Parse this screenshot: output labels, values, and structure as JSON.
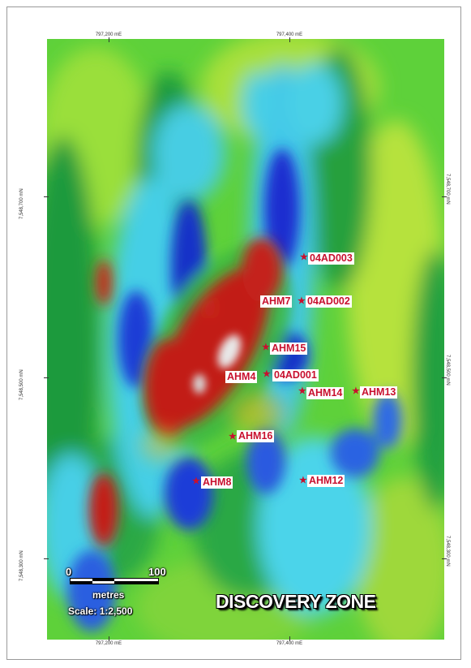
{
  "axes": {
    "top": [
      "797,200 mE",
      "797,400 mE"
    ],
    "bottom": [
      "797,200 mE",
      "797,400 mE"
    ],
    "left": [
      "7,548,700 mN",
      "7,548,500 mN",
      "7,548,300 mN"
    ],
    "right": [
      "7,548,700 mN",
      "7,548,500 mN",
      "7,548,300 mN"
    ]
  },
  "drillholes": [
    {
      "id": "04AD003"
    },
    {
      "id": "04AD002"
    },
    {
      "id": "AHM7"
    },
    {
      "id": "AHM15"
    },
    {
      "id": "AHM4"
    },
    {
      "id": "04AD001"
    },
    {
      "id": "AHM14"
    },
    {
      "id": "AHM13"
    },
    {
      "id": "AHM16"
    },
    {
      "id": "AHM8"
    },
    {
      "id": "AHM12"
    }
  ],
  "scalebar": {
    "min": "0",
    "max": "100",
    "unit": "metres",
    "scale": "Scale: 1:2,500"
  },
  "title": "DISCOVERY ZONE",
  "colors": {
    "high": "#c8201a",
    "peak": "#f0f0f0",
    "mid": "#2aa845",
    "low": "#1a2ad0",
    "cyan": "#45d0e8",
    "label": "#c8102e"
  }
}
